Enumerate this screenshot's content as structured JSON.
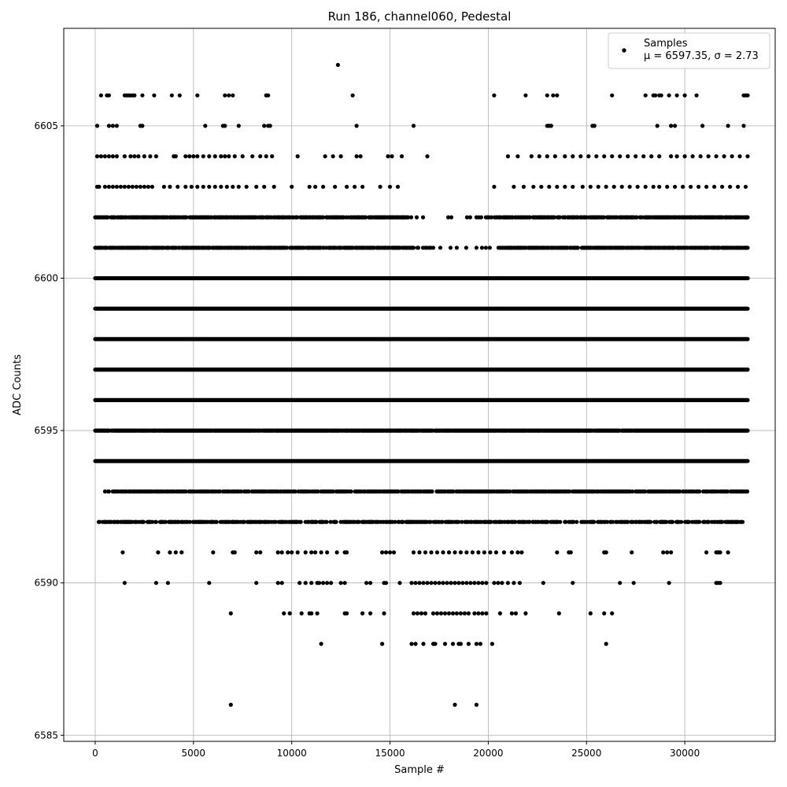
{
  "chart_data": {
    "type": "scatter",
    "title": "Run 186, channel060, Pedestal",
    "xlabel": "Sample #",
    "ylabel": "ADC Counts",
    "xlim": [
      -1600,
      34600
    ],
    "ylim": [
      6584.8,
      6608.2
    ],
    "xticks": [
      0,
      5000,
      10000,
      15000,
      20000,
      25000,
      30000
    ],
    "yticks": [
      6585,
      6590,
      6595,
      6600,
      6605
    ],
    "grid": true,
    "marker_color": "#000000",
    "legend": {
      "placement": "top-right",
      "entries": [
        {
          "name": "Samples",
          "stats": "μ = 6597.35, σ = 2.73"
        }
      ]
    },
    "series": [
      {
        "name": "Samples",
        "note": "dense horizontal bands of integer ADC values; x ranges per level with approximate point density",
        "bands": [
          {
            "y": 6607,
            "x": [
              12350
            ]
          },
          {
            "y": 6606,
            "x": [
              300,
              600,
              700,
              1500,
              1600,
              1700,
              1800,
              1900,
              2000,
              2400,
              3000,
              3900,
              4300,
              5200,
              6600,
              6800,
              7000,
              8700,
              8800,
              13100,
              20300,
              21900,
              23000,
              23300,
              23500,
              26300,
              28000,
              28400,
              28500,
              28700,
              28800,
              29200,
              29600,
              30000,
              30600,
              33000,
              33100,
              33200
            ]
          },
          {
            "y": 6605,
            "x": [
              100,
              700,
              900,
              1100,
              2300,
              2400,
              5600,
              6500,
              6600,
              7300,
              8600,
              8800,
              8900,
              13300,
              16200,
              23000,
              23100,
              23200,
              25300,
              25400,
              28600,
              29300,
              29500,
              30900,
              32200,
              33000
            ]
          },
          {
            "y": 6604,
            "x": [
              100,
              300,
              500,
              700,
              900,
              1100,
              1500,
              1800,
              2000,
              2200,
              2500,
              2800,
              3100,
              4000,
              4100,
              4600,
              4800,
              5000,
              5200,
              5500,
              5800,
              6100,
              6400,
              6600,
              6800,
              7100,
              7500,
              8000,
              8400,
              8700,
              9000,
              10300,
              11700,
              12100,
              12500,
              13300,
              13500,
              14900,
              15100,
              15600,
              16900,
              21000,
              21500,
              22200,
              22600,
              23000,
              23400,
              23900,
              24300,
              24700,
              25100,
              25500,
              25900,
              26300,
              26700,
              27100,
              27500,
              27900,
              28300,
              28700,
              29300,
              29600,
              30000,
              30400,
              30800,
              31200,
              31600,
              32000,
              32400,
              32800,
              33200
            ]
          },
          {
            "y": 6603,
            "x": [
              100,
              200,
              500,
              700,
              900,
              1100,
              1300,
              1500,
              1700,
              1900,
              2100,
              2300,
              2500,
              2700,
              2900,
              3500,
              3800,
              4200,
              4600,
              4900,
              5200,
              5500,
              5800,
              6100,
              6400,
              6700,
              7000,
              7300,
              7700,
              8200,
              8600,
              9100,
              10000,
              10900,
              11200,
              11600,
              12200,
              12800,
              13200,
              13600,
              14500,
              15000,
              15400,
              20300,
              21300,
              21800,
              22300,
              22700,
              23100,
              23500,
              23900,
              24300,
              24800,
              25200,
              25600,
              26000,
              26400,
              26800,
              27200,
              27600,
              28000,
              28400,
              28700,
              29100,
              29500,
              29900,
              30300,
              30700,
              31100,
              31500,
              31900,
              32300,
              32700,
              33100
            ]
          },
          {
            "y": 6602,
            "x_range": [
              0,
              33200
            ],
            "density": 0.75,
            "sparse_range": [
              16000,
              20300
            ]
          },
          {
            "y": 6601,
            "x_range": [
              0,
              33200
            ],
            "density": 0.8,
            "sparse_range": [
              16200,
              20500
            ]
          },
          {
            "y": 6600,
            "x_range": [
              0,
              33200
            ],
            "density": 1.0
          },
          {
            "y": 6599,
            "x_range": [
              0,
              33200
            ],
            "density": 1.0
          },
          {
            "y": 6598,
            "x_range": [
              0,
              33200
            ],
            "density": 1.0
          },
          {
            "y": 6597,
            "x_range": [
              0,
              33200
            ],
            "density": 1.0
          },
          {
            "y": 6596,
            "x_range": [
              0,
              33200
            ],
            "density": 1.0
          },
          {
            "y": 6595,
            "x_range": [
              0,
              33200
            ],
            "density": 0.95
          },
          {
            "y": 6594,
            "x_range": [
              0,
              33200
            ],
            "density": 1.0
          },
          {
            "y": 6593,
            "x_range": [
              500,
              33200
            ],
            "density": 0.7
          },
          {
            "y": 6592,
            "x_range": [
              100,
              33000
            ],
            "density": 0.55
          },
          {
            "y": 6591,
            "x": [
              1400,
              3200,
              3800,
              4100,
              4400,
              6000,
              7000,
              7100,
              8200,
              8400,
              9300,
              9500,
              9800,
              10000,
              10300,
              10700,
              11000,
              11200,
              11500,
              11800,
              12300,
              12700,
              12800,
              14600,
              14800,
              15000,
              15200,
              16200,
              16500,
              16800,
              17100,
              17400,
              17700,
              18000,
              18300,
              18600,
              18900,
              19200,
              19500,
              19800,
              20100,
              20400,
              20800,
              21200,
              21500,
              21700,
              23500,
              24100,
              24200,
              25900,
              26000,
              27300,
              28900,
              29100,
              29300,
              31100,
              31600,
              31700,
              31800,
              32200
            ]
          },
          {
            "y": 6590,
            "x": [
              1500,
              3100,
              3700,
              5800,
              8200,
              9300,
              9500,
              10400,
              10700,
              11000,
              11300,
              11400,
              11600,
              11800,
              12000,
              12500,
              12700,
              13800,
              14000,
              14700,
              14800,
              15500,
              16100,
              16300,
              16500,
              16700,
              16900,
              17100,
              17300,
              17500,
              17700,
              17900,
              18100,
              18300,
              18500,
              18700,
              18900,
              19100,
              19300,
              19500,
              19700,
              19900,
              20300,
              20500,
              20700,
              21000,
              21300,
              21600,
              22800,
              24300,
              26700,
              27400,
              29200,
              31600,
              31700,
              31800
            ]
          },
          {
            "y": 6589,
            "x": [
              6900,
              9600,
              9900,
              10500,
              10900,
              11000,
              11300,
              12700,
              12800,
              13600,
              14000,
              14700,
              16200,
              16400,
              16600,
              16800,
              17200,
              17400,
              17600,
              17800,
              18000,
              18200,
              18400,
              18600,
              18800,
              19000,
              19300,
              19500,
              19700,
              19900,
              20600,
              21200,
              21400,
              21900,
              23600,
              25200,
              25900,
              26300
            ]
          },
          {
            "y": 6588,
            "x": [
              11500,
              14600,
              16100,
              16300,
              16700,
              17200,
              17300,
              17800,
              18200,
              18500,
              18600,
              19000,
              19400,
              19600,
              20200,
              26000
            ]
          },
          {
            "y": 6586,
            "x": [
              6900,
              18300,
              19400
            ]
          }
        ]
      }
    ]
  }
}
